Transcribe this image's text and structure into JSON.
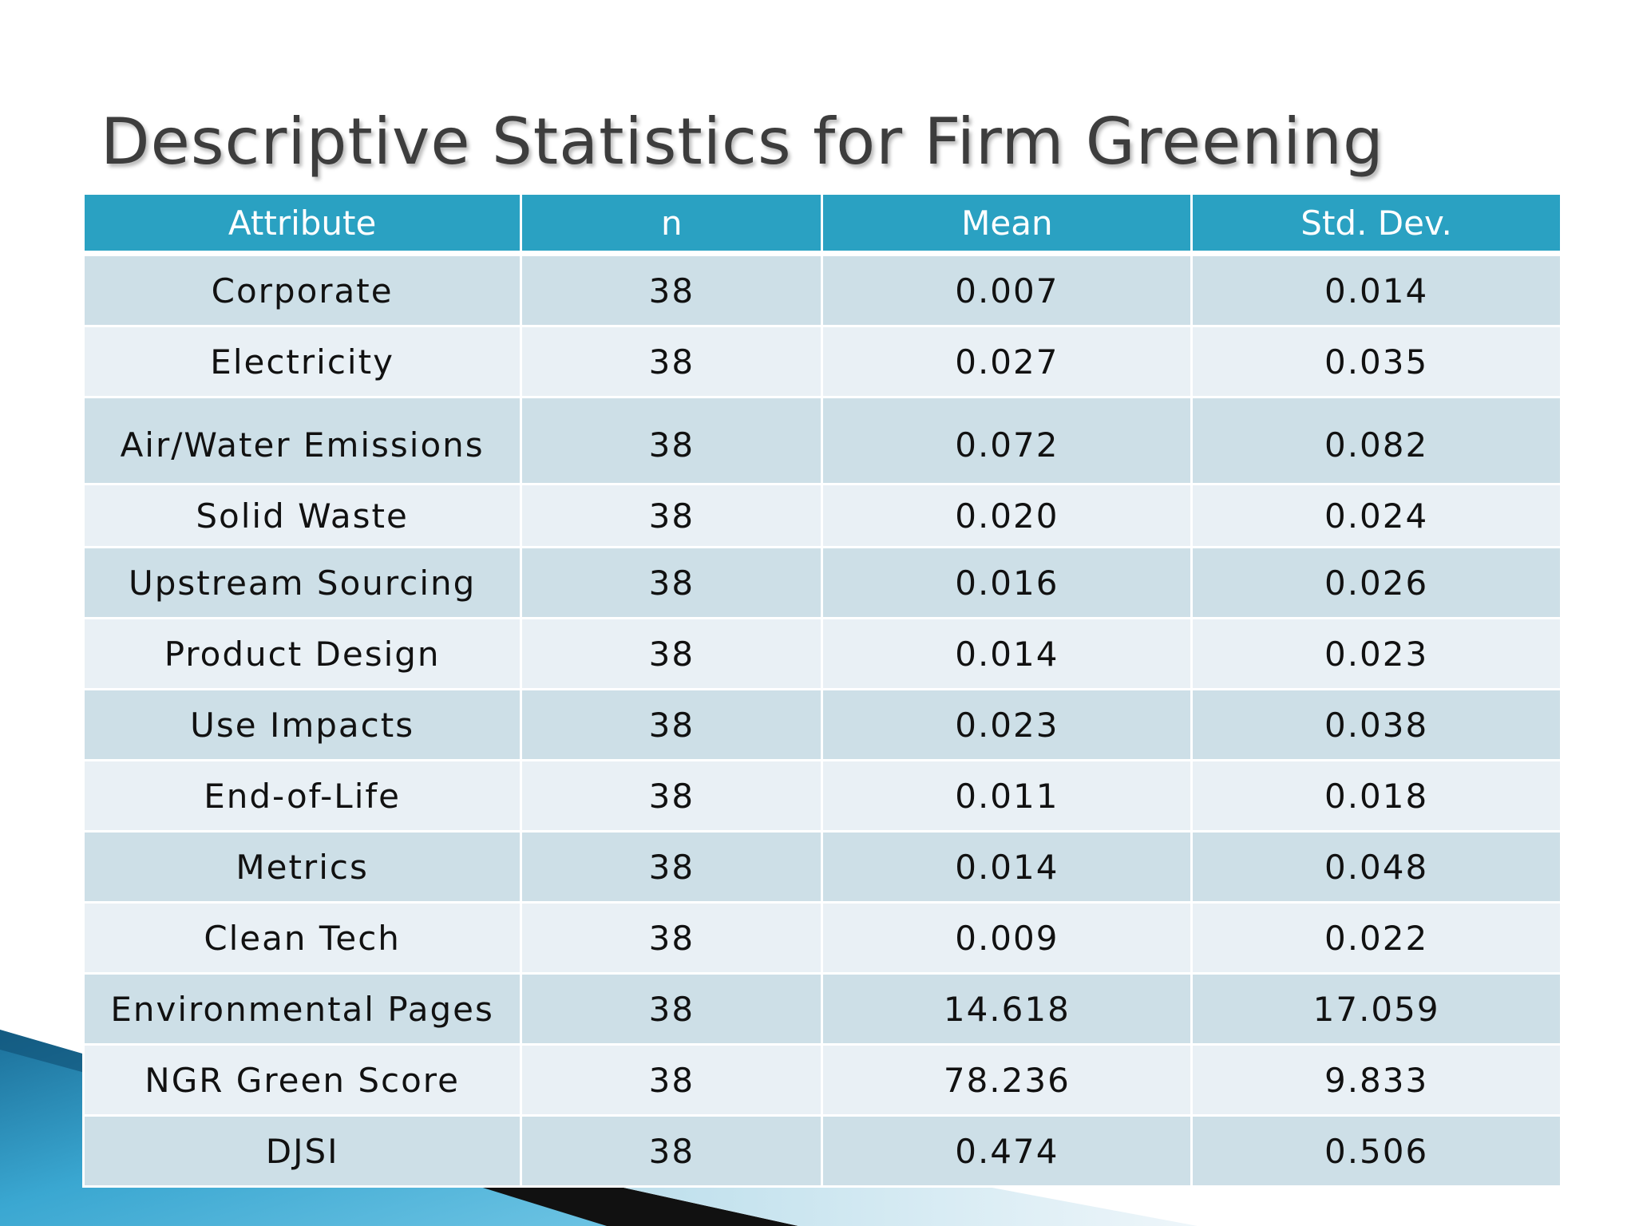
{
  "slide": {
    "title": "Descriptive Statistics for Firm Greening"
  },
  "table": {
    "headers": [
      "Attribute",
      "n",
      "Mean",
      "Std. Dev."
    ],
    "rows": [
      {
        "attribute": "Corporate",
        "n": "38",
        "mean": "0.007",
        "std_dev": "0.014"
      },
      {
        "attribute": "Electricity",
        "n": "38",
        "mean": "0.027",
        "std_dev": "0.035"
      },
      {
        "attribute": "Air/Water Emissions",
        "n": "38",
        "mean": "0.072",
        "std_dev": "0.082"
      },
      {
        "attribute": "Solid Waste",
        "n": "38",
        "mean": "0.020",
        "std_dev": "0.024"
      },
      {
        "attribute": "Upstream Sourcing",
        "n": "38",
        "mean": "0.016",
        "std_dev": "0.026"
      },
      {
        "attribute": "Product Design",
        "n": "38",
        "mean": "0.014",
        "std_dev": "0.023"
      },
      {
        "attribute": "Use Impacts",
        "n": "38",
        "mean": "0.023",
        "std_dev": "0.038"
      },
      {
        "attribute": "End-of-Life",
        "n": "38",
        "mean": "0.011",
        "std_dev": "0.018"
      },
      {
        "attribute": "Metrics",
        "n": "38",
        "mean": "0.014",
        "std_dev": "0.048"
      },
      {
        "attribute": "Clean Tech",
        "n": "38",
        "mean": "0.009",
        "std_dev": "0.022"
      },
      {
        "attribute": "Environmental Pages",
        "n": "38",
        "mean": "14.618",
        "std_dev": "17.059"
      },
      {
        "attribute": "NGR Green Score",
        "n": "38",
        "mean": "78.236",
        "std_dev": "9.833"
      },
      {
        "attribute": "DJSI",
        "n": "38",
        "mean": "0.474",
        "std_dev": "0.506"
      }
    ]
  },
  "colors": {
    "header_bg": "#2aa1c2",
    "row_odd_bg": "#cddfe7",
    "row_even_bg": "#e9f0f5",
    "title_text": "#3d3d3d",
    "decor_blue": "#2f95bd",
    "decor_black": "#111111"
  }
}
